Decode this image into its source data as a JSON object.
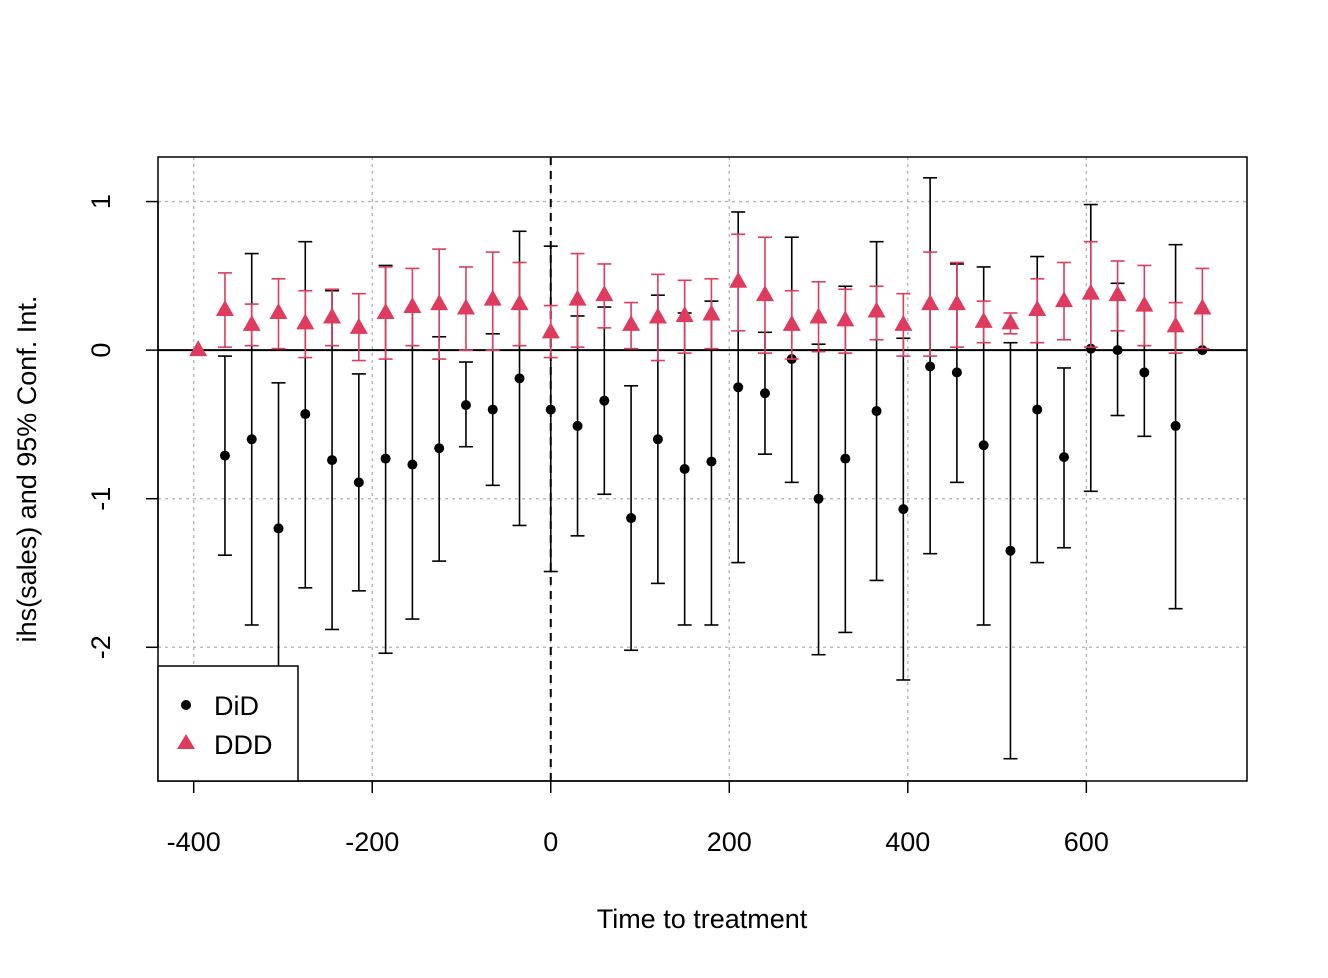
{
  "chart_data": {
    "type": "scatter",
    "title": "",
    "xlabel": "Time to treatment",
    "ylabel": "ihs(sales) and 95% Conf. Int.",
    "xlim": [
      -440,
      780
    ],
    "ylim": [
      -2.9,
      1.3
    ],
    "x_ticks": [
      -400,
      -200,
      0,
      200,
      400,
      600
    ],
    "x_tick_labels": [
      "-400",
      "-200",
      "0",
      "200",
      "400",
      "600"
    ],
    "y_ticks": [
      1,
      0,
      -1,
      -2
    ],
    "y_tick_labels": [
      "1",
      "0",
      "-1",
      "-2"
    ],
    "grid": true,
    "zero_line": 0,
    "treatment_line_x": 0,
    "legend": {
      "placement": "bottom-left",
      "entries": [
        {
          "label": "DiD",
          "marker": "circle",
          "color": "#000000"
        },
        {
          "label": "DDD",
          "marker": "triangle",
          "color": "#DF3B5E"
        }
      ]
    },
    "series": [
      {
        "name": "DiD",
        "marker": "circle",
        "color": "#000000",
        "x": [
          -365,
          -335,
          -305,
          -275,
          -245,
          -215,
          -185,
          -155,
          -125,
          -95,
          -65,
          -35,
          0,
          30,
          60,
          90,
          120,
          150,
          180,
          210,
          240,
          270,
          300,
          330,
          365,
          395,
          425,
          455,
          485,
          515,
          545,
          575,
          605,
          635,
          665,
          700,
          730
        ],
        "y": [
          -0.71,
          -0.6,
          -1.2,
          -0.43,
          -0.74,
          -0.89,
          -0.73,
          -0.77,
          -0.66,
          -0.37,
          -0.4,
          -0.19,
          -0.4,
          -0.51,
          -0.34,
          -1.13,
          -0.6,
          -0.8,
          -0.75,
          -0.25,
          -0.29,
          -0.06,
          -1.0,
          -0.73,
          -0.41,
          -1.07,
          -0.11,
          -0.15,
          -0.64,
          -1.35,
          -0.4,
          -0.72,
          0.01,
          0.0,
          -0.15,
          -0.51,
          0.0
        ],
        "lower": [
          -1.38,
          -1.85,
          -2.15,
          -1.6,
          -1.88,
          -1.62,
          -2.04,
          -1.81,
          -1.42,
          -0.65,
          -0.91,
          -1.18,
          -1.49,
          -1.25,
          -0.97,
          -2.02,
          -1.57,
          -1.85,
          -1.85,
          -1.43,
          -0.7,
          -0.89,
          -2.05,
          -1.9,
          -1.55,
          -2.22,
          -1.37,
          -0.89,
          -1.85,
          -2.75,
          -1.43,
          -1.33,
          -0.95,
          -0.44,
          -0.58,
          -1.74,
          0.0
        ],
        "upper": [
          -0.04,
          0.65,
          -0.22,
          0.73,
          0.4,
          -0.16,
          0.57,
          0.26,
          0.09,
          -0.08,
          0.11,
          0.8,
          0.7,
          0.23,
          0.29,
          -0.24,
          0.37,
          0.25,
          0.33,
          0.93,
          0.12,
          0.76,
          0.04,
          0.43,
          0.73,
          0.08,
          1.16,
          0.58,
          0.56,
          0.05,
          0.63,
          -0.12,
          0.98,
          0.45,
          0.28,
          0.71,
          0.0
        ]
      },
      {
        "name": "DDD",
        "marker": "triangle",
        "color": "#DF3B5E",
        "x": [
          -395,
          -365,
          -335,
          -305,
          -275,
          -245,
          -215,
          -185,
          -155,
          -125,
          -95,
          -65,
          -35,
          0,
          30,
          60,
          90,
          120,
          150,
          180,
          210,
          240,
          270,
          300,
          330,
          365,
          395,
          425,
          455,
          485,
          515,
          545,
          575,
          605,
          635,
          665,
          700,
          730
        ],
        "y": [
          0.0,
          0.27,
          0.17,
          0.25,
          0.18,
          0.22,
          0.15,
          0.25,
          0.29,
          0.31,
          0.28,
          0.34,
          0.31,
          0.12,
          0.34,
          0.37,
          0.17,
          0.22,
          0.23,
          0.24,
          0.46,
          0.37,
          0.17,
          0.22,
          0.2,
          0.26,
          0.17,
          0.31,
          0.31,
          0.19,
          0.18,
          0.27,
          0.33,
          0.38,
          0.37,
          0.3,
          0.16,
          0.28
        ],
        "lower": [
          0.0,
          0.02,
          0.03,
          0.01,
          -0.05,
          0.03,
          -0.07,
          -0.06,
          0.03,
          -0.06,
          0.0,
          0.0,
          0.03,
          -0.05,
          0.02,
          0.15,
          0.01,
          -0.07,
          -0.02,
          0.01,
          0.13,
          -0.02,
          -0.06,
          -0.01,
          -0.02,
          0.07,
          -0.04,
          -0.04,
          0.02,
          0.05,
          0.11,
          0.05,
          0.07,
          0.02,
          0.13,
          0.03,
          -0.02,
          0.01
        ],
        "upper": [
          0.0,
          0.52,
          0.31,
          0.48,
          0.4,
          0.41,
          0.38,
          0.56,
          0.55,
          0.68,
          0.56,
          0.66,
          0.59,
          0.3,
          0.65,
          0.58,
          0.32,
          0.51,
          0.47,
          0.48,
          0.78,
          0.76,
          0.4,
          0.46,
          0.41,
          0.43,
          0.38,
          0.66,
          0.59,
          0.33,
          0.25,
          0.48,
          0.59,
          0.73,
          0.6,
          0.57,
          0.32,
          0.55
        ]
      }
    ]
  }
}
